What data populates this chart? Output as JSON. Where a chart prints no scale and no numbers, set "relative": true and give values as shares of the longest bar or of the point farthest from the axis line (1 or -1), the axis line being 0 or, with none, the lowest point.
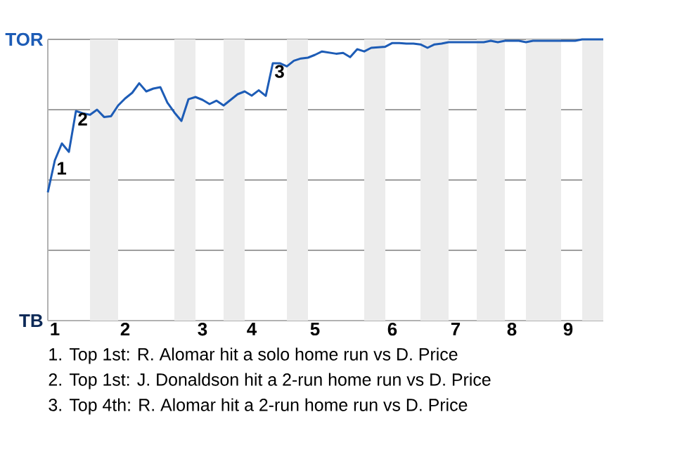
{
  "chart_data": {
    "type": "line",
    "color": "#1d5cb6",
    "relative": true,
    "categories": [
      null,
      "1",
      null,
      null,
      null,
      null,
      null,
      null,
      null,
      null,
      null,
      "2",
      null,
      null,
      null,
      null,
      null,
      null,
      null,
      null,
      null,
      null,
      "3",
      null,
      null,
      null,
      null,
      null,
      null,
      "4",
      null,
      null,
      null,
      null,
      null,
      null,
      null,
      null,
      "5",
      null,
      null,
      null,
      null,
      null,
      null,
      null,
      null,
      null,
      null,
      "6",
      null,
      null,
      null,
      null,
      null,
      null,
      null,
      null,
      "7",
      null,
      null,
      null,
      null,
      null,
      null,
      null,
      "8",
      null,
      null,
      null,
      null,
      null,
      null,
      null,
      "9",
      null,
      null,
      null,
      null,
      null
    ],
    "values": [
      0.456,
      0.57,
      0.63,
      0.6,
      0.745,
      0.737,
      0.732,
      0.75,
      0.724,
      0.727,
      0.765,
      0.79,
      0.81,
      0.844,
      0.815,
      0.825,
      0.83,
      0.775,
      0.74,
      0.71,
      0.787,
      0.795,
      0.785,
      0.77,
      0.782,
      0.765,
      0.785,
      0.805,
      0.815,
      0.8,
      0.819,
      0.799,
      0.915,
      0.915,
      0.904,
      0.924,
      0.932,
      0.935,
      0.945,
      0.957,
      0.953,
      0.949,
      0.952,
      0.937,
      0.965,
      0.957,
      0.97,
      0.972,
      0.974,
      0.987,
      0.987,
      0.985,
      0.985,
      0.982,
      0.97,
      0.982,
      0.985,
      0.99,
      0.99,
      0.99,
      0.99,
      0.99,
      0.99,
      0.995,
      0.99,
      0.995,
      0.995,
      0.995,
      0.99,
      0.995,
      0.995,
      0.995,
      0.995,
      0.995,
      0.995,
      0.995,
      1,
      1,
      1,
      1
    ],
    "grid": "y",
    "annotations": [
      "TOR",
      "TB",
      "1. Top 1st: R. Alomar hit a solo home run vs D. Price",
      "2. Top 1st: J. Donaldson hit a 2-run home run vs D. Price",
      "3. Top 4th: R. Alomar hit a 2-run home run vs D. Price",
      {
        "text": "1",
        "x": "1",
        "y": 0.57
      },
      {
        "text": "2",
        "y": 0.745
      },
      {
        "text": "3",
        "y": 0.915
      }
    ]
  }
}
